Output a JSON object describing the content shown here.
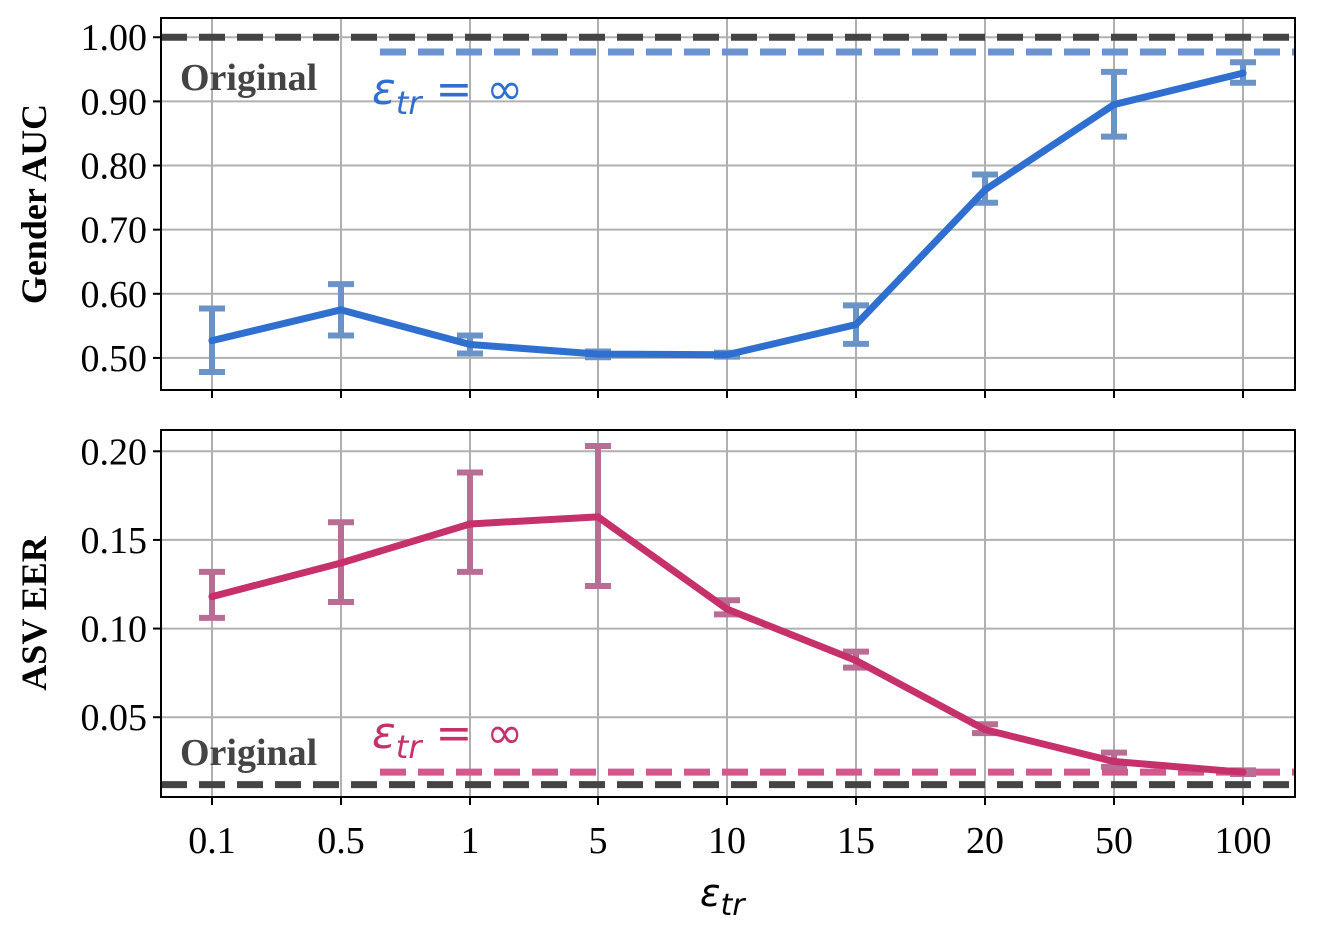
{
  "chart_data": [
    {
      "type": "line",
      "categories": [
        "0.1",
        "0.5",
        "1",
        "5",
        "10",
        "15",
        "20",
        "50",
        "100"
      ],
      "ylabel": "Gender AUC",
      "ylim": [
        0.45,
        1.03
      ],
      "yticks": [
        "0.50",
        "0.60",
        "0.70",
        "0.80",
        "0.90",
        "1.00"
      ],
      "grid": true,
      "series": [
        {
          "values": [
            0.527,
            0.575,
            0.521,
            0.506,
            0.505,
            0.552,
            0.762,
            0.895,
            0.944
          ],
          "err_low": [
            0.478,
            0.535,
            0.507,
            0.501,
            0.502,
            0.522,
            0.742,
            0.845,
            0.929
          ],
          "err_high": [
            0.577,
            0.615,
            0.535,
            0.51,
            0.508,
            0.582,
            0.786,
            0.946,
            0.961
          ],
          "line_color": "#2f6fd0",
          "err_color": "#6a93c8"
        }
      ],
      "reference_lines": [
        {
          "value": 1.0,
          "color": "#444444",
          "label": "Original"
        },
        {
          "value": 0.977,
          "color": "#6a93cf",
          "label": "ε_tr = ∞"
        }
      ]
    },
    {
      "type": "line",
      "categories": [
        "0.1",
        "0.5",
        "1",
        "5",
        "10",
        "15",
        "20",
        "50",
        "100"
      ],
      "xlabel": "ε_tr",
      "ylabel": "ASV EER",
      "ylim": [
        0.005,
        0.212
      ],
      "yticks": [
        "0.05",
        "0.10",
        "0.15",
        "0.20"
      ],
      "grid": true,
      "series": [
        {
          "values": [
            0.118,
            0.137,
            0.159,
            0.163,
            0.111,
            0.082,
            0.043,
            0.025,
            0.019
          ],
          "err_low": [
            0.106,
            0.115,
            0.132,
            0.124,
            0.108,
            0.078,
            0.041,
            0.022,
            0.018
          ],
          "err_high": [
            0.132,
            0.16,
            0.188,
            0.203,
            0.116,
            0.087,
            0.046,
            0.03,
            0.02
          ],
          "line_color": "#c6306b",
          "err_color": "#b86d94"
        }
      ],
      "reference_lines": [
        {
          "value": 0.012,
          "color": "#444444",
          "label": "Original"
        },
        {
          "value": 0.019,
          "color": "#d4588e",
          "label": "ε_tr = ∞"
        }
      ]
    }
  ],
  "annotations": {
    "top_original": "Original",
    "top_inf_base": "ε",
    "top_inf_sub": "tr",
    "top_inf_rest": " = ∞",
    "bottom_original": "Original",
    "bottom_inf_base": "ε",
    "bottom_inf_sub": "tr",
    "bottom_inf_rest": " = ∞",
    "xlabel_base": "ε",
    "xlabel_sub": "tr"
  },
  "colors": {
    "top_text": "#2f6fd0",
    "bottom_text": "#c6306b",
    "grid": "#b0b0b0",
    "original": "#444444"
  }
}
